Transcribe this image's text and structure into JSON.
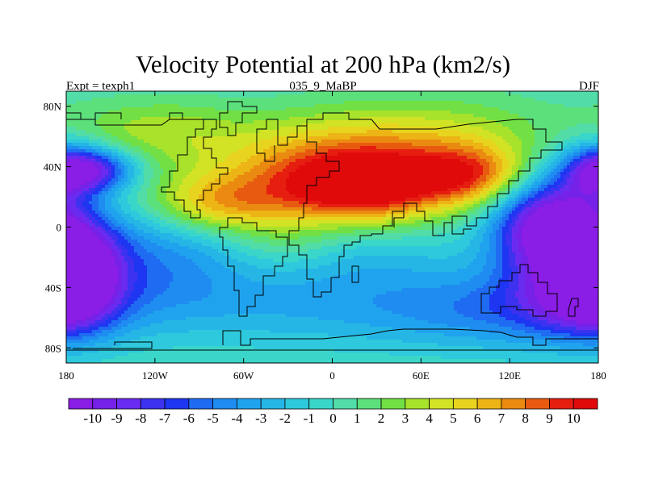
{
  "title": "Velocity Potential at 200 hPa (km2/s)",
  "left_label": "Expt = texph1",
  "center_label": "035_9_MaBP",
  "right_label": "DJF",
  "chart_data": {
    "type": "heatmap",
    "x_ticks": [
      {
        "value": -180,
        "label": "180"
      },
      {
        "value": -120,
        "label": "120W"
      },
      {
        "value": -60,
        "label": "60W"
      },
      {
        "value": 0,
        "label": "0"
      },
      {
        "value": 60,
        "label": "60E"
      },
      {
        "value": 120,
        "label": "120E"
      },
      {
        "value": 180,
        "label": "180"
      }
    ],
    "y_ticks": [
      {
        "value": 80,
        "label": "80N"
      },
      {
        "value": 40,
        "label": "40N"
      },
      {
        "value": 0,
        "label": "0"
      },
      {
        "value": -40,
        "label": "40S"
      },
      {
        "value": -80,
        "label": "80S"
      }
    ],
    "xlim": [
      -180,
      180
    ],
    "ylim": [
      -90,
      90
    ],
    "colorbar": {
      "levels": [
        -10,
        -9,
        -8,
        -7,
        -6,
        -5,
        -4,
        -3,
        -2,
        -1,
        0,
        1,
        2,
        3,
        4,
        5,
        6,
        7,
        8,
        9,
        10
      ],
      "labels": [
        "-10",
        "-9",
        "-8",
        "-7",
        "-6",
        "-5",
        "-4",
        "-3",
        "-2",
        "-1",
        "0",
        "1",
        "2",
        "3",
        "4",
        "5",
        "6",
        "7",
        "8",
        "9",
        "10"
      ]
    },
    "field_features": [
      {
        "feature": "maximum",
        "lon": 20,
        "lat": 25,
        "value": 10
      },
      {
        "feature": "maximum",
        "lon": 95,
        "lat": 35,
        "value": 9
      },
      {
        "feature": "maximum",
        "lon": -75,
        "lat": 15,
        "value": 8
      },
      {
        "feature": "minimum",
        "lon": -175,
        "lat": -25,
        "value": -10
      },
      {
        "feature": "minimum",
        "lon": 145,
        "lat": 5,
        "value": -10
      },
      {
        "feature": "minimum",
        "lon": -155,
        "lat": 38,
        "value": -6
      }
    ]
  }
}
